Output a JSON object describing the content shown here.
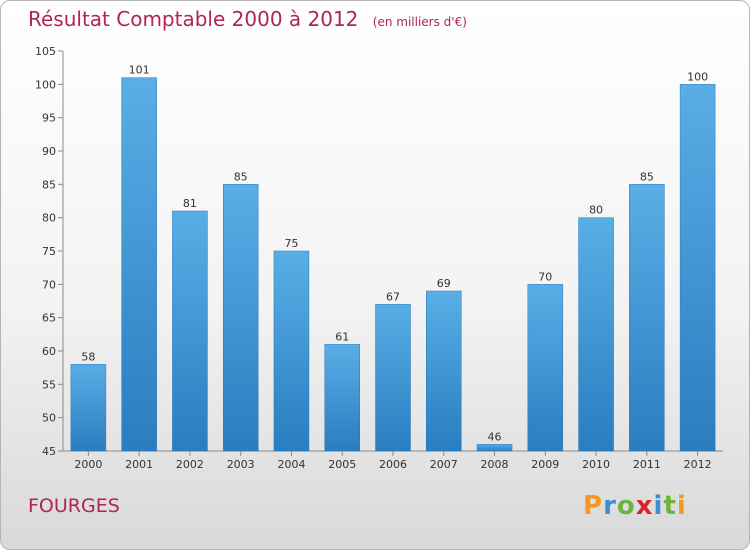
{
  "header": {
    "title": "Résultat Comptable 2000 à 2012",
    "unit": "(en milliers d'€)"
  },
  "footer": {
    "commune": "FOURGES",
    "logo": "Proxiti"
  },
  "colors": {
    "accent": "#b0245a",
    "bar_top": "#5aaee6",
    "bar_bottom": "#2a7dbf"
  },
  "chart_data": {
    "type": "bar",
    "categories": [
      "2000",
      "2001",
      "2002",
      "2003",
      "2004",
      "2005",
      "2006",
      "2007",
      "2008",
      "2009",
      "2010",
      "2011",
      "2012"
    ],
    "values": [
      58,
      101,
      81,
      85,
      75,
      61,
      67,
      69,
      46,
      70,
      80,
      85,
      100
    ],
    "title": "Résultat Comptable 2000 à 2012",
    "xlabel": "",
    "ylabel": "",
    "ylim": [
      45,
      105
    ],
    "yticks": [
      45,
      50,
      55,
      60,
      65,
      70,
      75,
      80,
      85,
      90,
      95,
      100,
      105
    ],
    "grid": false,
    "legend": "none"
  }
}
